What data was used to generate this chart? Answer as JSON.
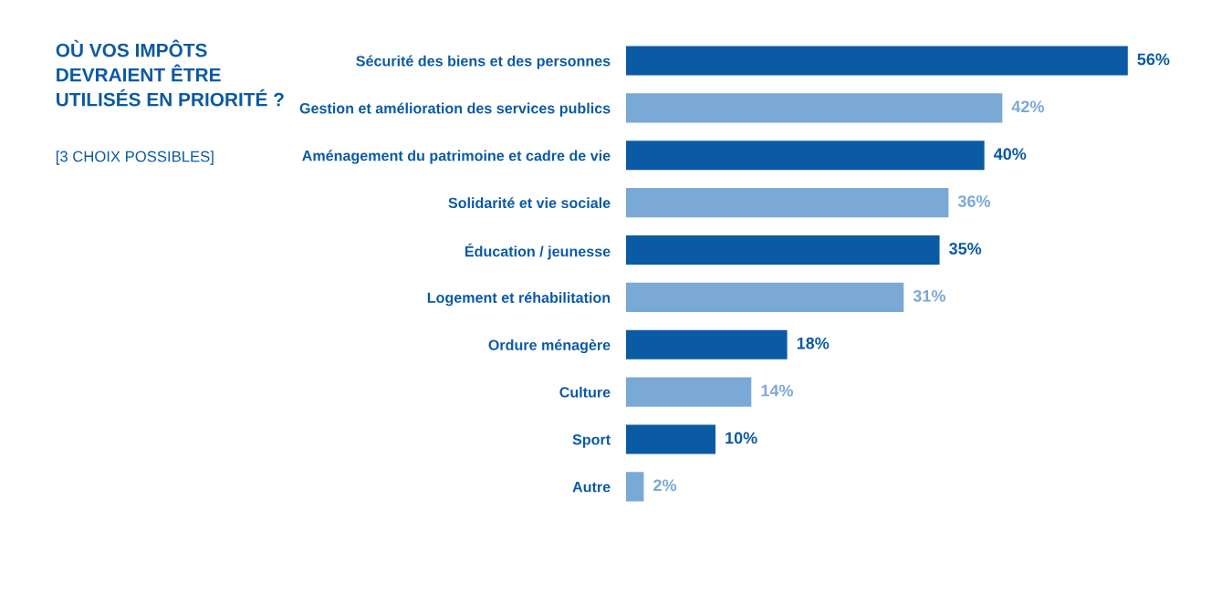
{
  "chart_data": {
    "type": "bar",
    "orientation": "horizontal",
    "title": "OÙ VOS IMPÔTS\nDEVRAIENT ÊTRE\nUTILISÉS EN PRIORITÉ ?",
    "subtitle": "[3 CHOIX POSSIBLES]",
    "categories": [
      "Sécurité des biens et des personnes",
      "Gestion et amélioration des services publics",
      "Aménagement du patrimoine et cadre de vie",
      "Solidarité et vie sociale",
      "Éducation / jeunesse",
      "Logement et réhabilitation",
      "Ordure ménagère",
      "Culture",
      "Sport",
      "Autre"
    ],
    "values": [
      56,
      42,
      40,
      36,
      35,
      31,
      18,
      14,
      10,
      2
    ],
    "value_labels": [
      "56%",
      "42%",
      "40%",
      "36%",
      "35%",
      "31%",
      "18%",
      "14%",
      "10%",
      "2%"
    ],
    "colors": [
      "#0b5aa4",
      "#7ba9d6",
      "#0b5aa4",
      "#7ba9d6",
      "#0b5aa4",
      "#7ba9d6",
      "#0b5aa4",
      "#7ba9d6",
      "#0b5aa4",
      "#7ba9d6"
    ],
    "grid": false
  }
}
